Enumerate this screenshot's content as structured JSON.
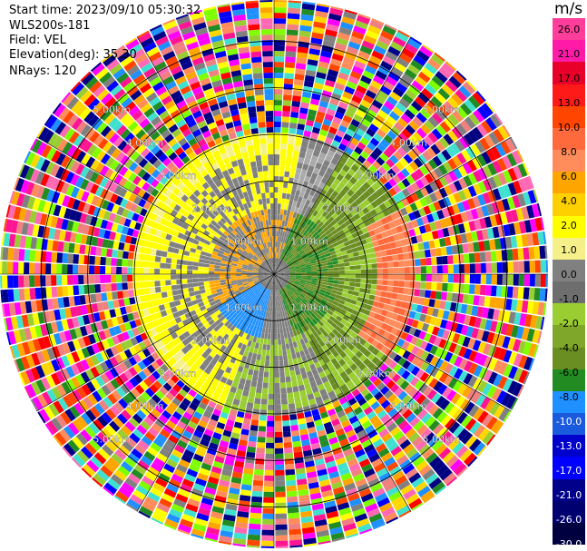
{
  "header": {
    "start_time": "Start time: 2023/09/10 05:30:32",
    "instrument": "WLS200s-181",
    "field": "Field: VEL",
    "elevation": "Elevation(deg): 35.30",
    "nrays": "NRays: 120"
  },
  "colorbar": {
    "title": "m/s",
    "ticks": [
      "26.0",
      "21.0",
      "17.0",
      "13.0",
      "10.0",
      "8.0",
      "6.0",
      "4.0",
      "2.0",
      "1.0",
      "0.0",
      "-1.0",
      "-2.0",
      "-4.0",
      "-6.0",
      "-8.0",
      "-10.0",
      "-13.0",
      "-17.0",
      "-21.0",
      "-26.0",
      "-30.0"
    ],
    "colors": [
      "#ff3d9a",
      "#ff1aa8",
      "#e8002a",
      "#ff1a1a",
      "#ff4500",
      "#ff6a3d",
      "#ff8c5a",
      "#ffa500",
      "#ffd000",
      "#ffff00",
      "#f5f08a",
      "#808080",
      "#6e6e6e",
      "#9acd32",
      "#7fa82a",
      "#6b8e23",
      "#228b22",
      "#1e90ff",
      "#1a5adc",
      "#0000cd",
      "#0000ff",
      "#00008b",
      "#000070",
      "#000040"
    ]
  },
  "chart_data": {
    "type": "ppi",
    "field": "VEL",
    "units": "m/s",
    "nrays": 120,
    "elevation_deg": 35.3,
    "range_rings_km": [
      1.0,
      2.0,
      3.0,
      4.0,
      5.0
    ],
    "range_labels": [
      "1.00km",
      "2.00km",
      "3.00km",
      "4.00km",
      "5.00km"
    ],
    "max_range_km": 5.0,
    "vmin": -30.0,
    "vmax": 26.0,
    "clean_range_km": 2.6,
    "wind_note": "inner region: positive (toward warm colors) on the east side, negative/near-zero on the west"
  }
}
